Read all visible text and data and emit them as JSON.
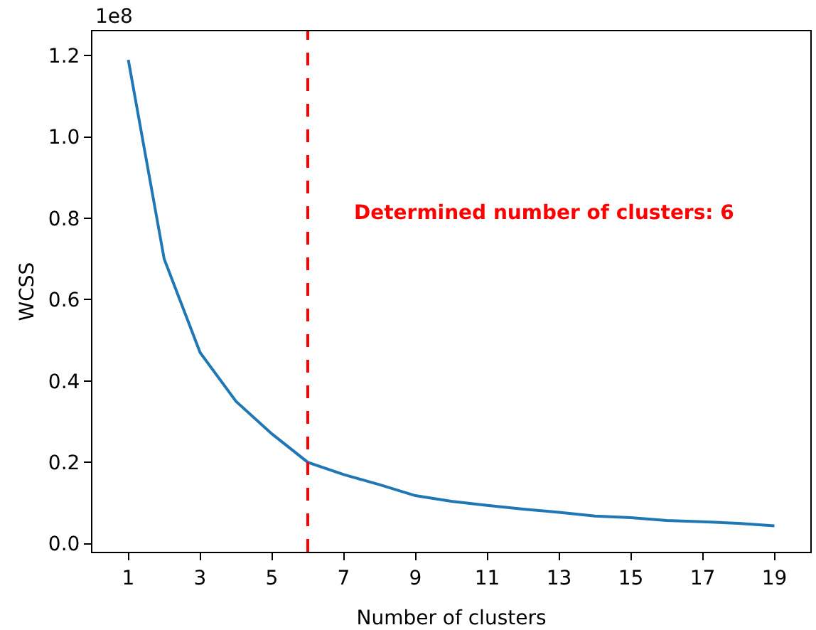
{
  "chart_data": {
    "type": "line",
    "xlabel": "Number of clusters",
    "ylabel": "WCSS",
    "x": [
      1,
      2,
      3,
      4,
      5,
      6,
      7,
      8,
      9,
      10,
      11,
      12,
      13,
      14,
      15,
      16,
      17,
      18,
      19
    ],
    "series": [
      {
        "color": "#1f77b4",
        "values": [
          1.19,
          0.7,
          0.47,
          0.35,
          0.27,
          0.2,
          0.17,
          0.145,
          0.118,
          0.104,
          0.094,
          0.085,
          0.077,
          0.068,
          0.064,
          0.057,
          0.054,
          0.05,
          0.044
        ]
      }
    ],
    "xlim": [
      0,
      20
    ],
    "ylim": [
      -0.02,
      1.26
    ],
    "xticks": [
      1,
      3,
      5,
      7,
      9,
      11,
      13,
      15,
      17,
      19
    ],
    "yticks": [
      {
        "value": 0,
        "label": "0.0"
      },
      0.2,
      0.4,
      0.6,
      0.8,
      {
        "value": 1,
        "label": "1.0"
      },
      1.2
    ],
    "ref_lines": [
      {
        "axis": "x",
        "value": 6,
        "color": "#ff0000",
        "line_style": "dashed"
      }
    ],
    "annotations": [
      "1e8",
      "Determined number of clusters: 6"
    ],
    "line_style": "solid"
  }
}
